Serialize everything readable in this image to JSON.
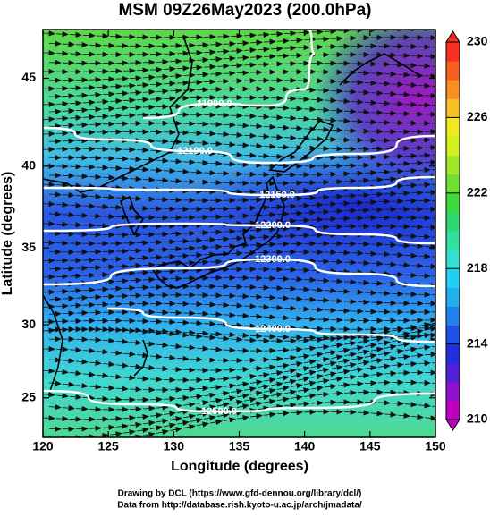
{
  "chart_data": {
    "type": "map",
    "title": "MSM 09Z26May2023 (200.0hPa)",
    "xlabel": "Longitude (degrees)",
    "ylabel": "Latitude  (degrees)",
    "projection": "mercator",
    "xlim": [
      120,
      150
    ],
    "xticks": [
      120,
      125,
      130,
      135,
      140,
      145,
      150
    ],
    "ylim": [
      22.2,
      47.6
    ],
    "yticks": [
      25,
      30,
      35,
      40,
      45
    ],
    "contours": [
      {
        "value": 11900,
        "label": "11900.0"
      },
      {
        "value": 12100,
        "label": "12100.0"
      },
      {
        "value": 12150,
        "label": "12150.0"
      },
      {
        "value": 12200,
        "label": "12200.0"
      },
      {
        "value": 12300,
        "label": "12300.0"
      },
      {
        "value": 12400,
        "label": "12400.0"
      },
      {
        "value": 12500,
        "label": "12500.0"
      }
    ],
    "colorbar": {
      "lim": [
        210,
        230
      ],
      "ticks": [
        210,
        214,
        218,
        222,
        226,
        230
      ],
      "colors": [
        "#c000c0",
        "#9010d0",
        "#5020d8",
        "#2030e0",
        "#2050e8",
        "#2080f0",
        "#20b0f0",
        "#20d0f0",
        "#30e0d0",
        "#30e0a0",
        "#30d870",
        "#40d840",
        "#70e030",
        "#a0e828",
        "#d0f020",
        "#f0e820",
        "#f8c020",
        "#f89020",
        "#f86020",
        "#f83020"
      ]
    },
    "footer": [
      "Drawing by DCL (https://www.gfd-dennou.org/library/dcl/)",
      "Data from http://database.rish.kyoto-u.ac.jp/arch/jmadata/"
    ]
  }
}
